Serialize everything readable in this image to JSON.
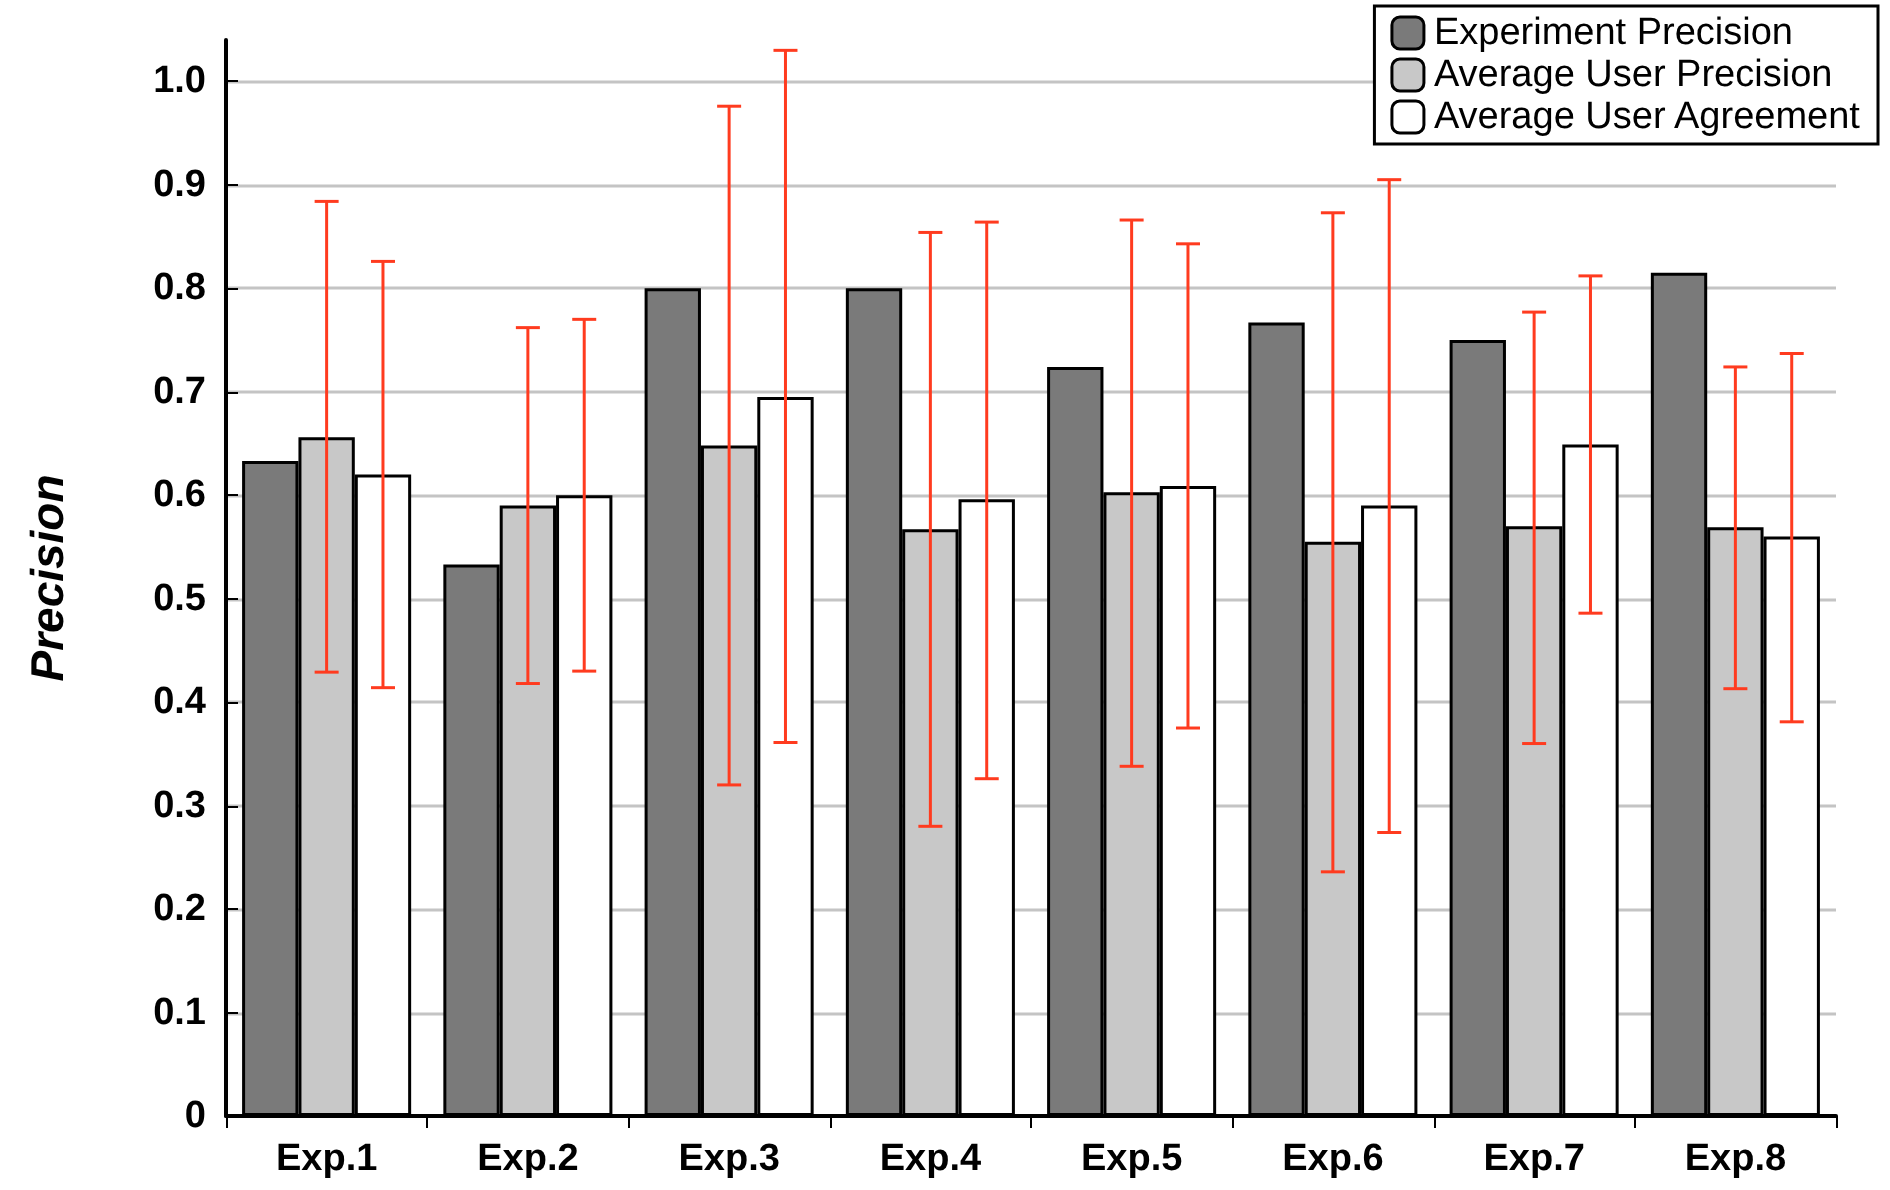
{
  "chart_data": {
    "type": "bar",
    "ylabel": "Precision",
    "categories": [
      "Exp.1",
      "Exp.2",
      "Exp.3",
      "Exp.4",
      "Exp.5",
      "Exp.6",
      "Exp.7",
      "Exp.8"
    ],
    "series": [
      {
        "name": "Experiment Precision",
        "color": "#7a7a7a",
        "values": [
          0.633,
          0.533,
          0.8,
          0.8,
          0.724,
          0.767,
          0.75,
          0.815
        ]
      },
      {
        "name": "Average User Precision",
        "color": "#c8c8c8",
        "values": [
          0.656,
          0.59,
          0.648,
          0.567,
          0.603,
          0.555,
          0.57,
          0.569
        ],
        "errors": [
          [
            0.429,
            0.884
          ],
          [
            0.418,
            0.762
          ],
          [
            0.32,
            0.976
          ],
          [
            0.28,
            0.854
          ],
          [
            0.338,
            0.866
          ],
          [
            0.236,
            0.873
          ],
          [
            0.36,
            0.777
          ],
          [
            0.413,
            0.724
          ]
        ]
      },
      {
        "name": "Average User Agreement",
        "color": "#ffffff",
        "values": [
          0.62,
          0.6,
          0.695,
          0.596,
          0.609,
          0.59,
          0.649,
          0.56
        ],
        "errors": [
          [
            0.414,
            0.826
          ],
          [
            0.43,
            0.77
          ],
          [
            0.361,
            1.03
          ],
          [
            0.326,
            0.864
          ],
          [
            0.375,
            0.843
          ],
          [
            0.274,
            0.905
          ],
          [
            0.486,
            0.812
          ],
          [
            0.381,
            0.737
          ]
        ]
      }
    ],
    "ylim": [
      0,
      1.04
    ],
    "yticks": [
      0,
      0.1,
      0.2,
      0.3,
      0.4,
      0.5,
      0.6,
      0.7,
      0.8,
      0.9,
      {
        "value": 1,
        "label": "1.0"
      }
    ],
    "grid": "y",
    "legend": "top right"
  }
}
